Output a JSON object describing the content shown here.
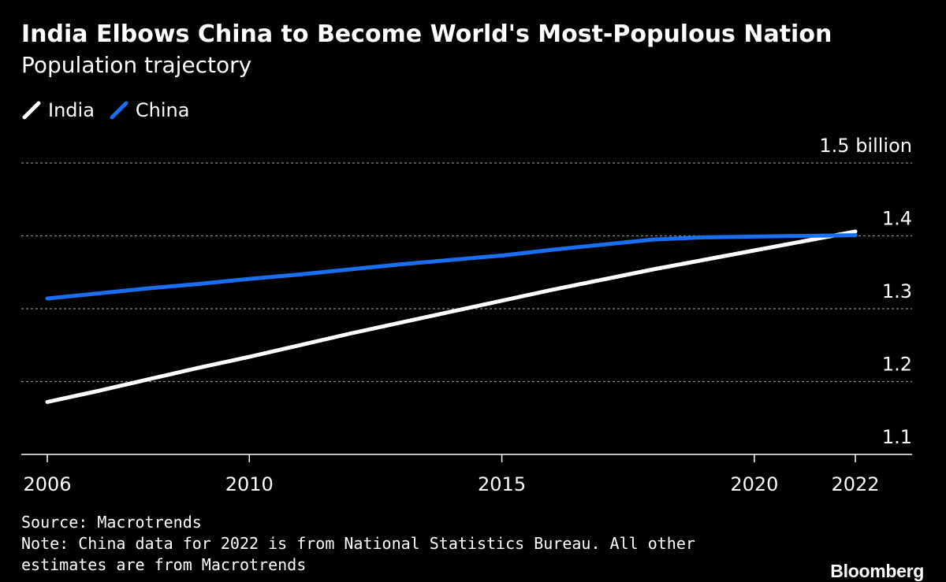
{
  "header": {
    "title": "India Elbows China to Become World's Most-Populous Nation",
    "subtitle": "Population trajectory"
  },
  "legend": [
    {
      "label": "India",
      "color": "#ffffff"
    },
    {
      "label": "China",
      "color": "#1a6ef0"
    }
  ],
  "footer": {
    "source": "Source: Macrotrends",
    "note": "Note: China data for 2022 is from National Statistics Bureau. All other estimates are from Macrotrends",
    "brand": "Bloomberg"
  },
  "chart_data": {
    "type": "line",
    "title": "India Elbows China to Become World's Most-Populous Nation",
    "subtitle": "Population trajectory",
    "xlabel": "",
    "ylabel": "",
    "xlim": [
      2006,
      2022
    ],
    "ylim": [
      1.1,
      1.5
    ],
    "x_ticks": [
      {
        "value": 2006,
        "label": "2006"
      },
      {
        "value": 2010,
        "label": "2010"
      },
      {
        "value": 2015,
        "label": "2015"
      },
      {
        "value": 2020,
        "label": "2020"
      },
      {
        "value": 2022,
        "label": "2022"
      }
    ],
    "y_ticks": [
      {
        "value": 1.5,
        "label": "1.5 billion"
      },
      {
        "value": 1.4,
        "label": "1.4"
      },
      {
        "value": 1.3,
        "label": "1.3"
      },
      {
        "value": 1.2,
        "label": "1.2"
      },
      {
        "value": 1.1,
        "label": "1.1"
      }
    ],
    "grid": true,
    "legend_position": "top-left",
    "x": [
      2006,
      2007,
      2008,
      2009,
      2010,
      2011,
      2012,
      2013,
      2014,
      2015,
      2016,
      2017,
      2018,
      2019,
      2020,
      2021,
      2022
    ],
    "series": [
      {
        "name": "India",
        "color": "#ffffff",
        "values": [
          1.172,
          1.187,
          1.203,
          1.219,
          1.234,
          1.25,
          1.266,
          1.281,
          1.296,
          1.311,
          1.326,
          1.34,
          1.354,
          1.367,
          1.38,
          1.393,
          1.406
        ]
      },
      {
        "name": "China",
        "color": "#1a6ef0",
        "values": [
          1.314,
          1.321,
          1.328,
          1.334,
          1.341,
          1.347,
          1.354,
          1.361,
          1.367,
          1.373,
          1.381,
          1.388,
          1.395,
          1.398,
          1.399,
          1.4,
          1.401
        ]
      }
    ]
  }
}
